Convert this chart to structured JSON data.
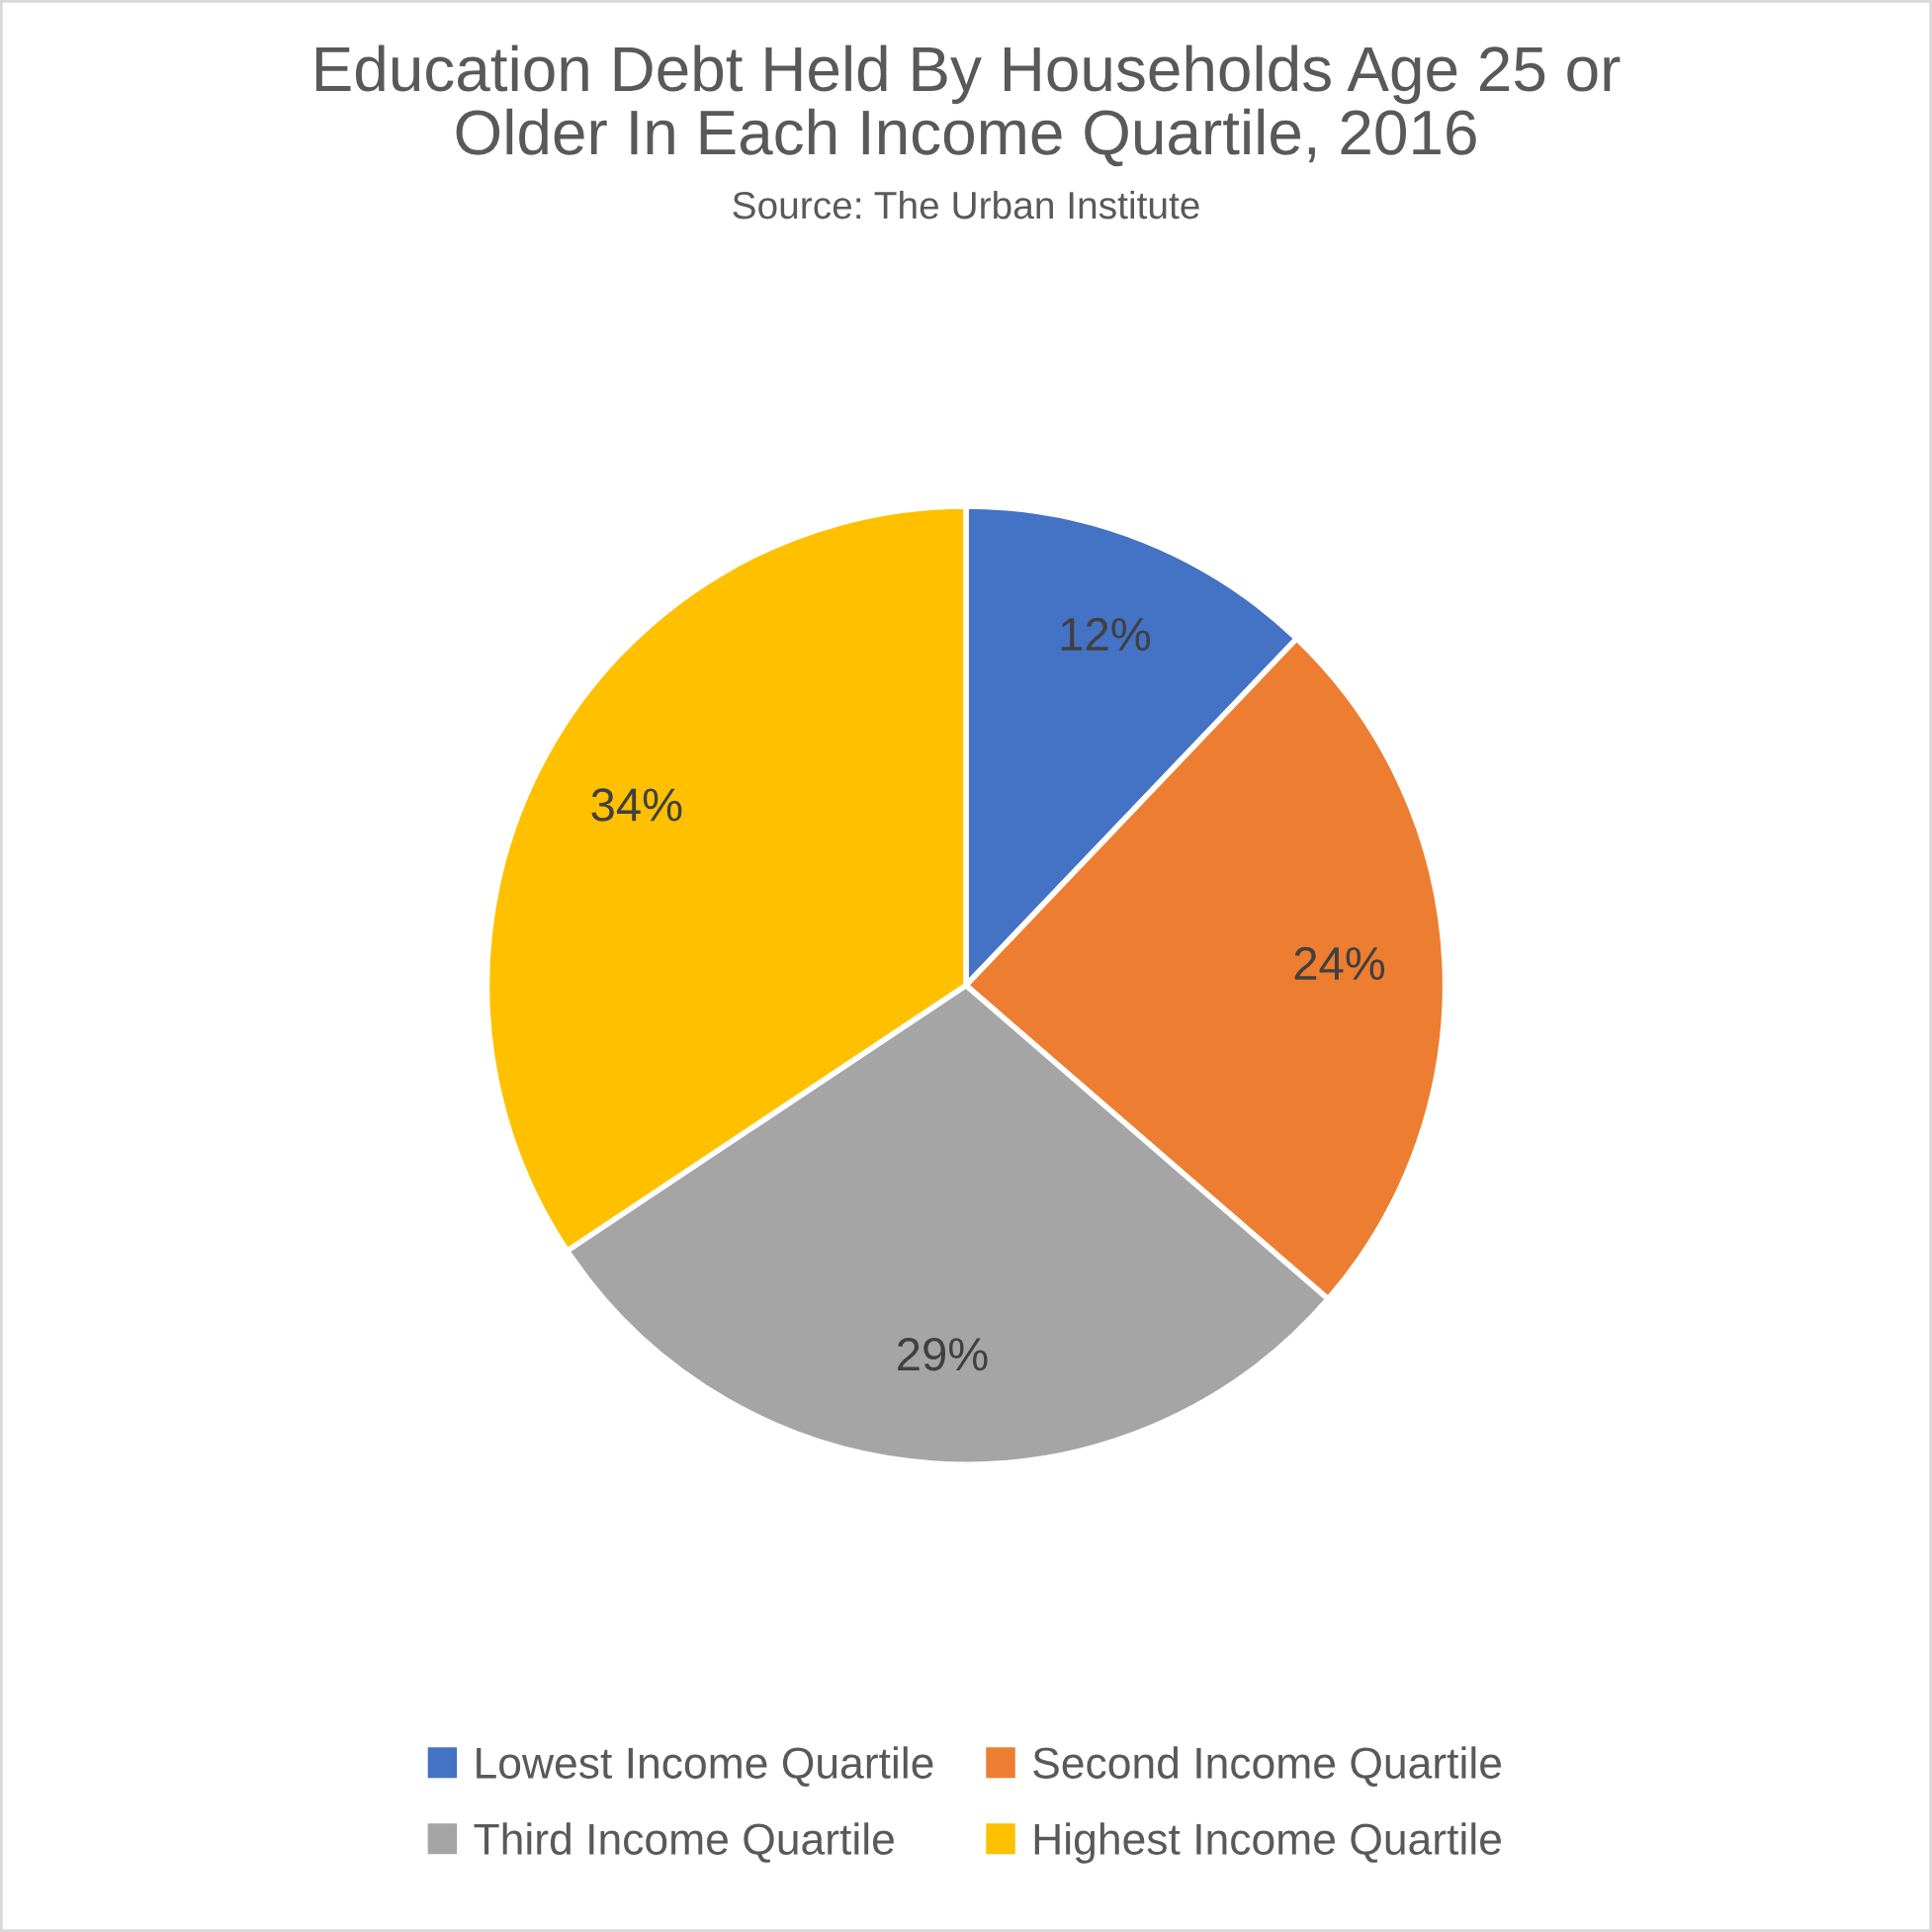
{
  "chart_data": {
    "type": "pie",
    "title": "Education Debt Held By Households Age 25 or\nOlder In Each Income Quartile, 2016",
    "annotations": [
      "Source: The Urban Institute"
    ],
    "categories": [
      "Lowest Income Quartile",
      "Second Income Quartile",
      "Third Income Quartile",
      "Highest Income Quartile"
    ],
    "values": [
      12,
      24,
      29,
      34
    ],
    "value_labels": [
      "12%",
      "24%",
      "29%",
      "34%"
    ],
    "colors": [
      "#4472c4",
      "#ed7d31",
      "#a5a5a5",
      "#ffc000"
    ],
    "legend": "bottom"
  }
}
